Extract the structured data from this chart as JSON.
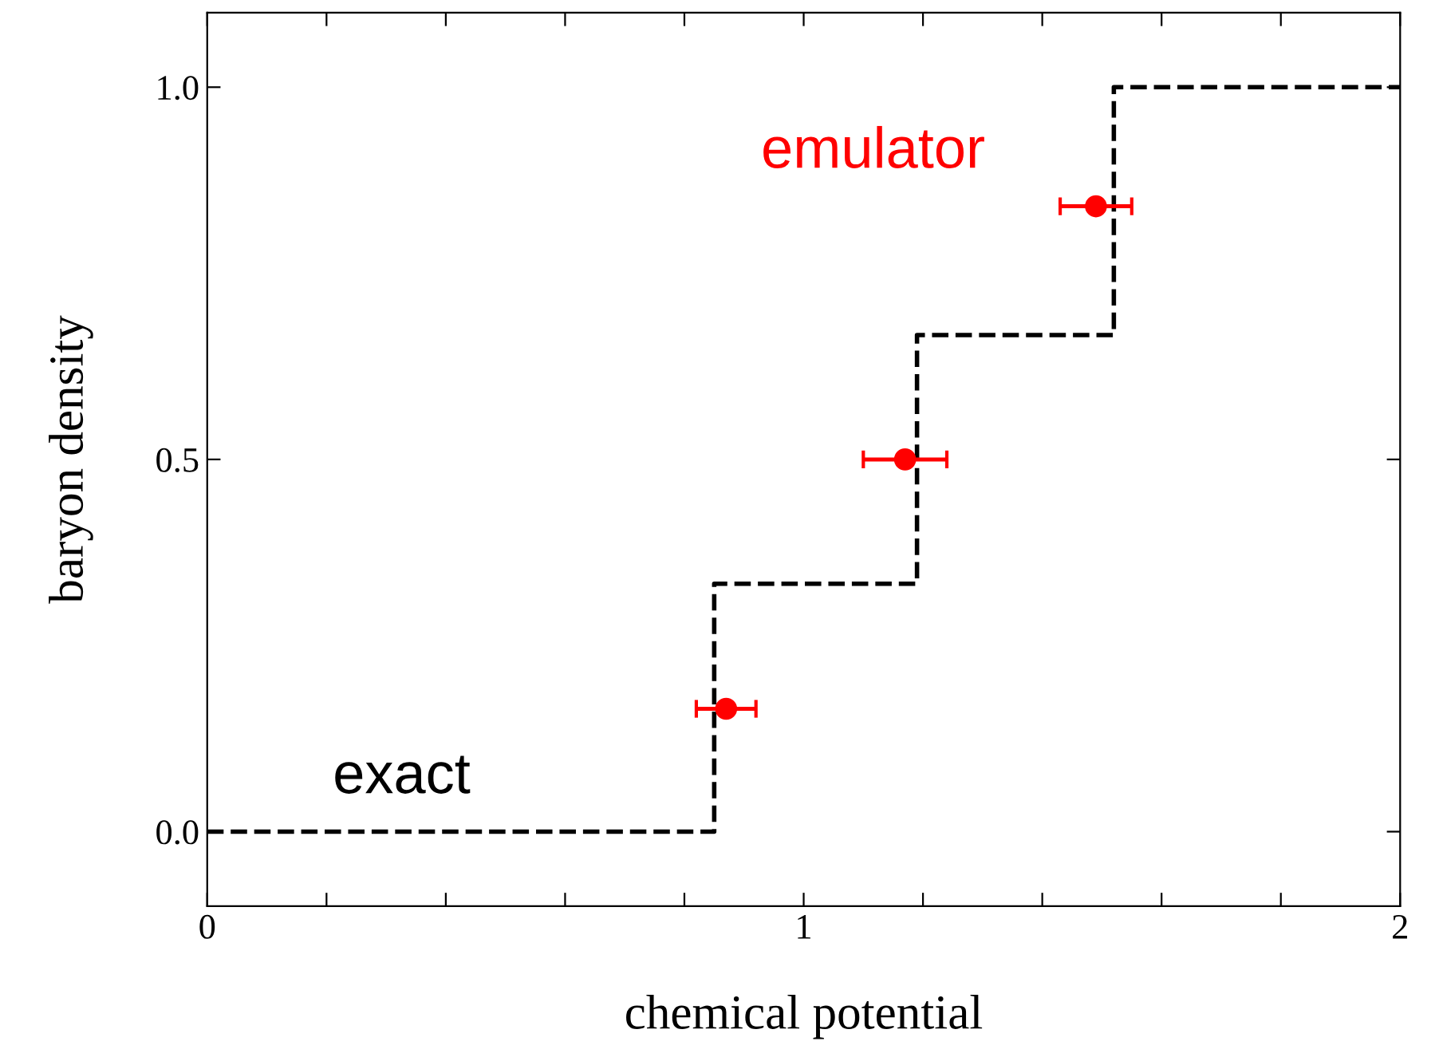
{
  "chart_data": {
    "type": "step",
    "xlabel": "chemical potential",
    "ylabel": "baryon density",
    "series": [
      {
        "name": "exact",
        "color": "#000000",
        "line_style": "dashed",
        "marker": "none",
        "x": [
          0,
          0.85,
          1.19,
          1.52,
          2
        ],
        "values": [
          0,
          0.333,
          0.667,
          1,
          1
        ]
      },
      {
        "type": "scatter",
        "name": "emulator",
        "color": "#ff0000",
        "marker": "circle",
        "x": [
          0.87,
          1.17,
          1.49
        ],
        "values": [
          0.165,
          0.5,
          0.84
        ],
        "xerrors": [
          0.05,
          0.07,
          0.06
        ]
      }
    ],
    "xlim": [
      0,
      2
    ],
    "ylim": [
      -0.1,
      1.1
    ],
    "xticks": [
      0,
      {
        "value": 0.2,
        "label": null
      },
      {
        "value": 0.4,
        "label": null
      },
      {
        "value": 0.6,
        "label": null
      },
      {
        "value": 0.8,
        "label": null
      },
      1,
      {
        "value": 1.2,
        "label": null
      },
      {
        "value": 1.4,
        "label": null
      },
      {
        "value": 1.6,
        "label": null
      },
      {
        "value": 1.8,
        "label": null
      },
      2
    ],
    "yticks": [
      {
        "value": 0,
        "label": "0.0"
      },
      0.5,
      {
        "value": 1,
        "label": "1.0"
      }
    ],
    "grid": false
  }
}
